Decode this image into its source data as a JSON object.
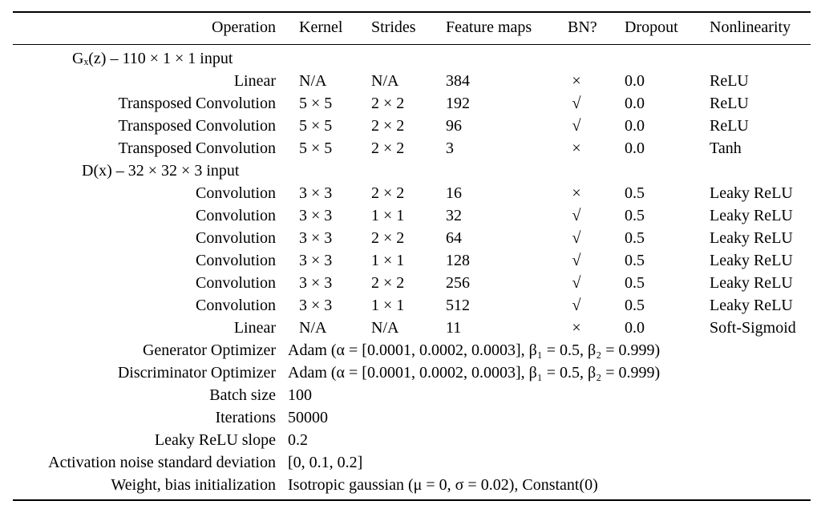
{
  "header": {
    "operation": "Operation",
    "kernel": "Kernel",
    "strides": "Strides",
    "feature_maps": "Feature maps",
    "bn": "BN?",
    "dropout": "Dropout",
    "nonlinearity": "Nonlinearity"
  },
  "generator": {
    "section": "Gₓ(z) – 110 × 1 × 1 input",
    "rows": [
      {
        "operation": "Linear",
        "kernel": "N/A",
        "strides": "N/A",
        "feature_maps": "384",
        "bn": "×",
        "dropout": "0.0",
        "nonlinearity": "ReLU"
      },
      {
        "operation": "Transposed Convolution",
        "kernel": "5 × 5",
        "strides": "2 × 2",
        "feature_maps": "192",
        "bn": "√",
        "dropout": "0.0",
        "nonlinearity": "ReLU"
      },
      {
        "operation": "Transposed Convolution",
        "kernel": "5 × 5",
        "strides": "2 × 2",
        "feature_maps": "96",
        "bn": "√",
        "dropout": "0.0",
        "nonlinearity": "ReLU"
      },
      {
        "operation": "Transposed Convolution",
        "kernel": "5 × 5",
        "strides": "2 × 2",
        "feature_maps": "3",
        "bn": "×",
        "dropout": "0.0",
        "nonlinearity": "Tanh"
      }
    ]
  },
  "discriminator": {
    "section": "D(x) – 32 × 32 × 3 input",
    "rows": [
      {
        "operation": "Convolution",
        "kernel": "3 × 3",
        "strides": "2 × 2",
        "feature_maps": "16",
        "bn": "×",
        "dropout": "0.5",
        "nonlinearity": "Leaky ReLU"
      },
      {
        "operation": "Convolution",
        "kernel": "3 × 3",
        "strides": "1 × 1",
        "feature_maps": "32",
        "bn": "√",
        "dropout": "0.5",
        "nonlinearity": "Leaky ReLU"
      },
      {
        "operation": "Convolution",
        "kernel": "3 × 3",
        "strides": "2 × 2",
        "feature_maps": "64",
        "bn": "√",
        "dropout": "0.5",
        "nonlinearity": "Leaky ReLU"
      },
      {
        "operation": "Convolution",
        "kernel": "3 × 3",
        "strides": "1 × 1",
        "feature_maps": "128",
        "bn": "√",
        "dropout": "0.5",
        "nonlinearity": "Leaky ReLU"
      },
      {
        "operation": "Convolution",
        "kernel": "3 × 3",
        "strides": "2 × 2",
        "feature_maps": "256",
        "bn": "√",
        "dropout": "0.5",
        "nonlinearity": "Leaky ReLU"
      },
      {
        "operation": "Convolution",
        "kernel": "3 × 3",
        "strides": "1 × 1",
        "feature_maps": "512",
        "bn": "√",
        "dropout": "0.5",
        "nonlinearity": "Leaky ReLU"
      },
      {
        "operation": "Linear",
        "kernel": "N/A",
        "strides": "N/A",
        "feature_maps": "11",
        "bn": "×",
        "dropout": "0.0",
        "nonlinearity": "Soft-Sigmoid"
      }
    ]
  },
  "settings": [
    {
      "label": "Generator Optimizer",
      "value": "Adam (α = [0.0001, 0.0002, 0.0003], β₁ = 0.5, β₂ = 0.999)"
    },
    {
      "label": "Discriminator Optimizer",
      "value": "Adam (α = [0.0001, 0.0002, 0.0003], β₁ = 0.5, β₂ = 0.999)"
    },
    {
      "label": "Batch size",
      "value": "100"
    },
    {
      "label": "Iterations",
      "value": "50000"
    },
    {
      "label": "Leaky ReLU slope",
      "value": "0.2"
    },
    {
      "label": "Activation noise standard deviation",
      "value": "[0, 0.1, 0.2]"
    },
    {
      "label": "Weight, bias initialization",
      "value": "Isotropic gaussian (μ = 0, σ = 0.02), Constant(0)"
    }
  ]
}
